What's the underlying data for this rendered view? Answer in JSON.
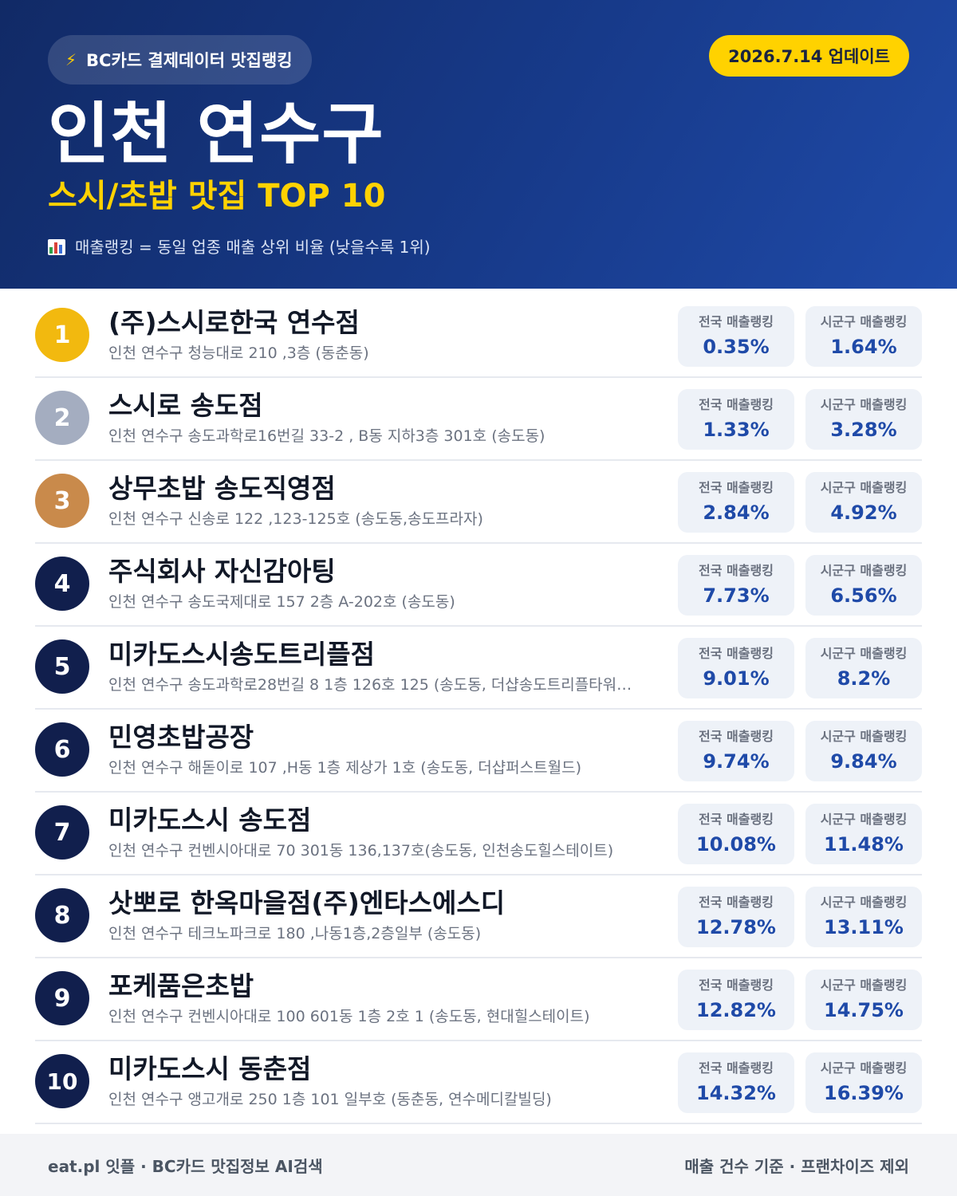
{
  "header": {
    "source_badge": "BC카드 결제데이터 맛집랭킹",
    "update_badge": "2026.7.14 업데이트",
    "title": "인천 연수구",
    "subtitle": "스시/초밥 맛집 TOP 10",
    "note": "매출랭킹 = 동일 업종 매출 상위 비율 (낮을수록 1위)",
    "icons": {
      "source": "lightning-icon",
      "note": "bar-chart-icon"
    }
  },
  "labels": {
    "national": "전국 매출랭킹",
    "local": "시군구 매출랭킹"
  },
  "colors": {
    "navy": "#111f4d",
    "gold": "#f2b90f",
    "silver": "#a4adc0",
    "bronze": "#c98a4b",
    "accent": "#1f4aa8",
    "yellow": "#ffd200"
  },
  "items": [
    {
      "rank": "1",
      "name": "(주)스시로한국 연수점",
      "address": "인천 연수구 청능대로 210 ,3층 (동춘동)",
      "national": "0.35%",
      "local": "1.64%"
    },
    {
      "rank": "2",
      "name": "스시로 송도점",
      "address": "인천 연수구 송도과학로16번길 33-2 , B동 지하3층 301호 (송도동)",
      "national": "1.33%",
      "local": "3.28%"
    },
    {
      "rank": "3",
      "name": "상무초밥 송도직영점",
      "address": "인천 연수구 신송로 122 ,123-125호 (송도동,송도프라자)",
      "national": "2.84%",
      "local": "4.92%"
    },
    {
      "rank": "4",
      "name": "주식회사 자신감아팅",
      "address": "인천 연수구 송도국제대로 157 2층 A-202호 (송도동)",
      "national": "7.73%",
      "local": "6.56%"
    },
    {
      "rank": "5",
      "name": "미카도스시송도트리플점",
      "address": "인천 연수구 송도과학로28번길 8 1층 126호 125 (송도동, 더샵송도트리플타워…",
      "national": "9.01%",
      "local": "8.2%"
    },
    {
      "rank": "6",
      "name": "민영초밥공장",
      "address": "인천 연수구 해돋이로 107 ,H동 1층 제상가 1호 (송도동, 더샵퍼스트월드)",
      "national": "9.74%",
      "local": "9.84%"
    },
    {
      "rank": "7",
      "name": "미카도스시 송도점",
      "address": "인천 연수구 컨벤시아대로 70 301동 136,137호(송도동, 인천송도힐스테이트)",
      "national": "10.08%",
      "local": "11.48%"
    },
    {
      "rank": "8",
      "name": "삿뽀로 한옥마을점(주)엔타스에스디",
      "address": "인천 연수구 테크노파크로 180 ,나동1층,2층일부 (송도동)",
      "national": "12.78%",
      "local": "13.11%"
    },
    {
      "rank": "9",
      "name": "포케품은초밥",
      "address": "인천 연수구 컨벤시아대로 100 601동 1층 2호 1 (송도동, 현대힐스테이트)",
      "national": "12.82%",
      "local": "14.75%"
    },
    {
      "rank": "10",
      "name": "미카도스시 동춘점",
      "address": "인천 연수구 앵고개로 250 1층 101 일부호 (동춘동, 연수메디칼빌딩)",
      "national": "14.32%",
      "local": "16.39%"
    }
  ],
  "footer": {
    "left": "eat.pl 잇플 · BC카드 맛집정보 AI검색",
    "right": "매출 건수 기준 · 프랜차이즈 제외"
  }
}
